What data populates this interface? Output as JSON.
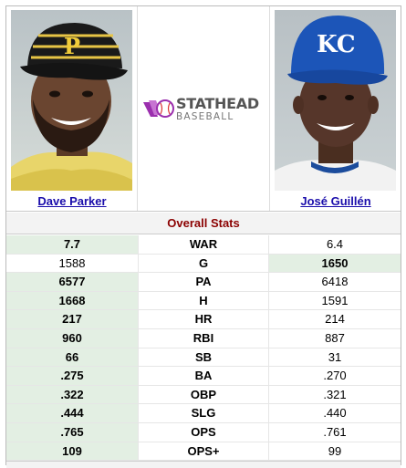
{
  "players": {
    "left": {
      "name": "Dave Parker",
      "photo": "player-photo-pirates-cap"
    },
    "right": {
      "name": "José Guillén",
      "photo": "player-photo-royals-cap"
    }
  },
  "brand": {
    "main": "STATHEAD",
    "sub": "BASEBALL",
    "accent": "#9b2fae"
  },
  "section_title": "Overall Stats",
  "colors": {
    "winner_bg": "#e3efe3",
    "title_color": "#8b0000",
    "link": "#1a0dab"
  },
  "stats": [
    {
      "label": "WAR",
      "left": "7.7",
      "right": "6.4",
      "winner": "left"
    },
    {
      "label": "G",
      "left": "1588",
      "right": "1650",
      "winner": "right"
    },
    {
      "label": "PA",
      "left": "6577",
      "right": "6418",
      "winner": "left"
    },
    {
      "label": "H",
      "left": "1668",
      "right": "1591",
      "winner": "left"
    },
    {
      "label": "HR",
      "left": "217",
      "right": "214",
      "winner": "left"
    },
    {
      "label": "RBI",
      "left": "960",
      "right": "887",
      "winner": "left"
    },
    {
      "label": "SB",
      "left": "66",
      "right": "31",
      "winner": "left"
    },
    {
      "label": "BA",
      "left": ".275",
      "right": ".270",
      "winner": "left"
    },
    {
      "label": "OBP",
      "left": ".322",
      "right": ".321",
      "winner": "left"
    },
    {
      "label": "SLG",
      "left": ".444",
      "right": ".440",
      "winner": "left"
    },
    {
      "label": "OPS",
      "left": ".765",
      "right": ".761",
      "winner": "left"
    },
    {
      "label": "OPS+",
      "left": "109",
      "right": "99",
      "winner": "left"
    }
  ]
}
